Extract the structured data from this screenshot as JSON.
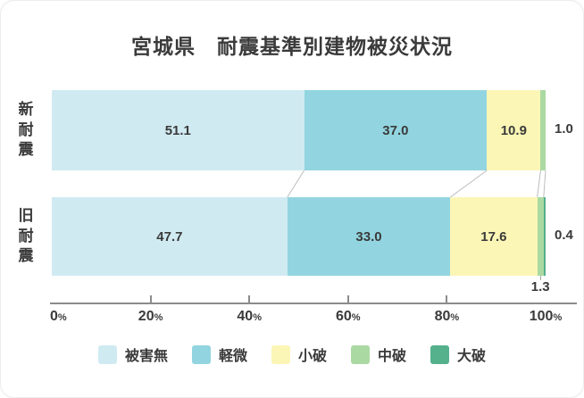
{
  "title": "宮城県　耐震基準別建物被災状況",
  "chart_data": {
    "type": "bar",
    "stacked": true,
    "orientation": "horizontal",
    "unit": "%",
    "xlim": [
      0,
      100
    ],
    "x_ticks": [
      0,
      20,
      40,
      60,
      80,
      100
    ],
    "x_tick_suffix": "%",
    "grid": false,
    "legend_position": "bottom",
    "categories": [
      "新耐震",
      "旧耐震"
    ],
    "series": [
      {
        "name": "被害無",
        "color": "#d0eaf2",
        "values": [
          51.1,
          47.7
        ]
      },
      {
        "name": "軽微",
        "color": "#92d5e0",
        "values": [
          37.0,
          33.0
        ]
      },
      {
        "name": "小破",
        "color": "#fbf6b6",
        "values": [
          10.9,
          17.6
        ]
      },
      {
        "name": "中破",
        "color": "#abd9a2",
        "values": [
          1.0,
          1.3
        ]
      },
      {
        "name": "大破",
        "color": "#55b08c",
        "values": [
          0,
          0.4
        ]
      }
    ],
    "value_labels": [
      [
        {
          "text": "51.1",
          "placement": "inside"
        },
        {
          "text": "37.0",
          "placement": "inside"
        },
        {
          "text": "10.9",
          "placement": "inside"
        },
        {
          "text": "1.0",
          "placement": "right"
        },
        null
      ],
      [
        {
          "text": "47.7",
          "placement": "inside"
        },
        {
          "text": "33.0",
          "placement": "inside"
        },
        {
          "text": "17.6",
          "placement": "inside"
        },
        {
          "text": "1.3",
          "placement": "below"
        },
        {
          "text": "0.4",
          "placement": "right"
        }
      ]
    ]
  },
  "legend": {
    "items": [
      {
        "label": "被害無",
        "color": "#d0eaf2"
      },
      {
        "label": "軽微",
        "color": "#92d5e0"
      },
      {
        "label": "小破",
        "color": "#fbf6b6"
      },
      {
        "label": "中破",
        "color": "#abd9a2"
      },
      {
        "label": "大破",
        "color": "#55b08c"
      }
    ]
  },
  "colors": {
    "text": "#3a3a3a",
    "axis": "#8b8b8b",
    "connector": "#bdbdbd",
    "background": "#ffffff"
  }
}
